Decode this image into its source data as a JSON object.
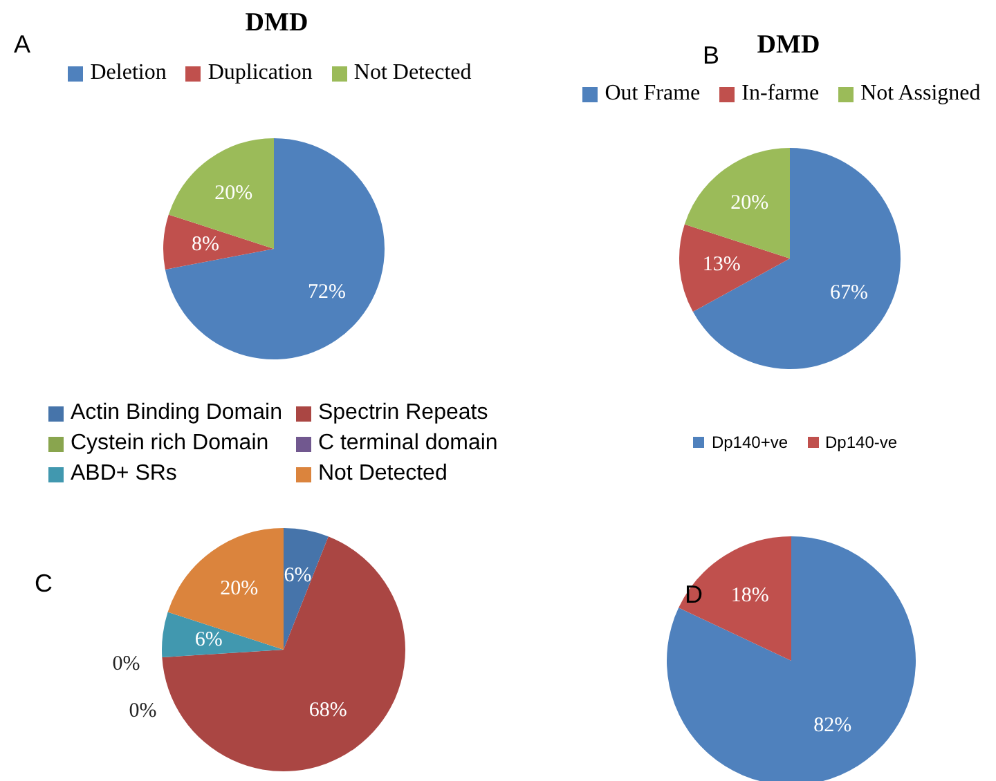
{
  "chart_data": [
    {
      "type": "pie",
      "title": "DMD",
      "categories": [
        "Deletion",
        "Duplication",
        "Not Detected"
      ],
      "values": [
        72,
        8,
        20
      ],
      "colors": [
        "#4f81bd",
        "#c0504d",
        "#9bbb59"
      ],
      "value_labels": [
        "72%",
        "8%",
        "20%"
      ],
      "legend": "top",
      "annotations": [
        "A"
      ]
    },
    {
      "type": "pie",
      "title": "DMD",
      "categories": [
        "Out Frame",
        "In-farme",
        "Not Assigned"
      ],
      "values": [
        67,
        13,
        20
      ],
      "colors": [
        "#4f81bd",
        "#c0504d",
        "#9bbb59"
      ],
      "value_labels": [
        "67%",
        "13%",
        "20%"
      ],
      "legend": "top",
      "annotations": [
        "B"
      ]
    },
    {
      "type": "pie",
      "categories": [
        "Actin Binding Domain",
        "Spectrin Repeats",
        "Cystein rich Domain",
        "C terminal domain",
        "ABD+ SRs",
        "Not Detected"
      ],
      "values": [
        6,
        68,
        0,
        0,
        6,
        20
      ],
      "colors": [
        "#4674aa",
        "#aa4643",
        "#89a54e",
        "#71588f",
        "#4198af",
        "#db843d"
      ],
      "value_labels": [
        "6%",
        "68%",
        "0%",
        "0%",
        "6%",
        "20%"
      ],
      "legend": "top",
      "annotations": [
        "C"
      ]
    },
    {
      "type": "pie",
      "categories": [
        "Dp140+ve",
        "Dp140-ve"
      ],
      "values": [
        82,
        18
      ],
      "colors": [
        "#4f81bd",
        "#c0504d"
      ],
      "value_labels": [
        "82%",
        "18%"
      ],
      "legend": "top",
      "annotations": [
        "D"
      ]
    }
  ]
}
